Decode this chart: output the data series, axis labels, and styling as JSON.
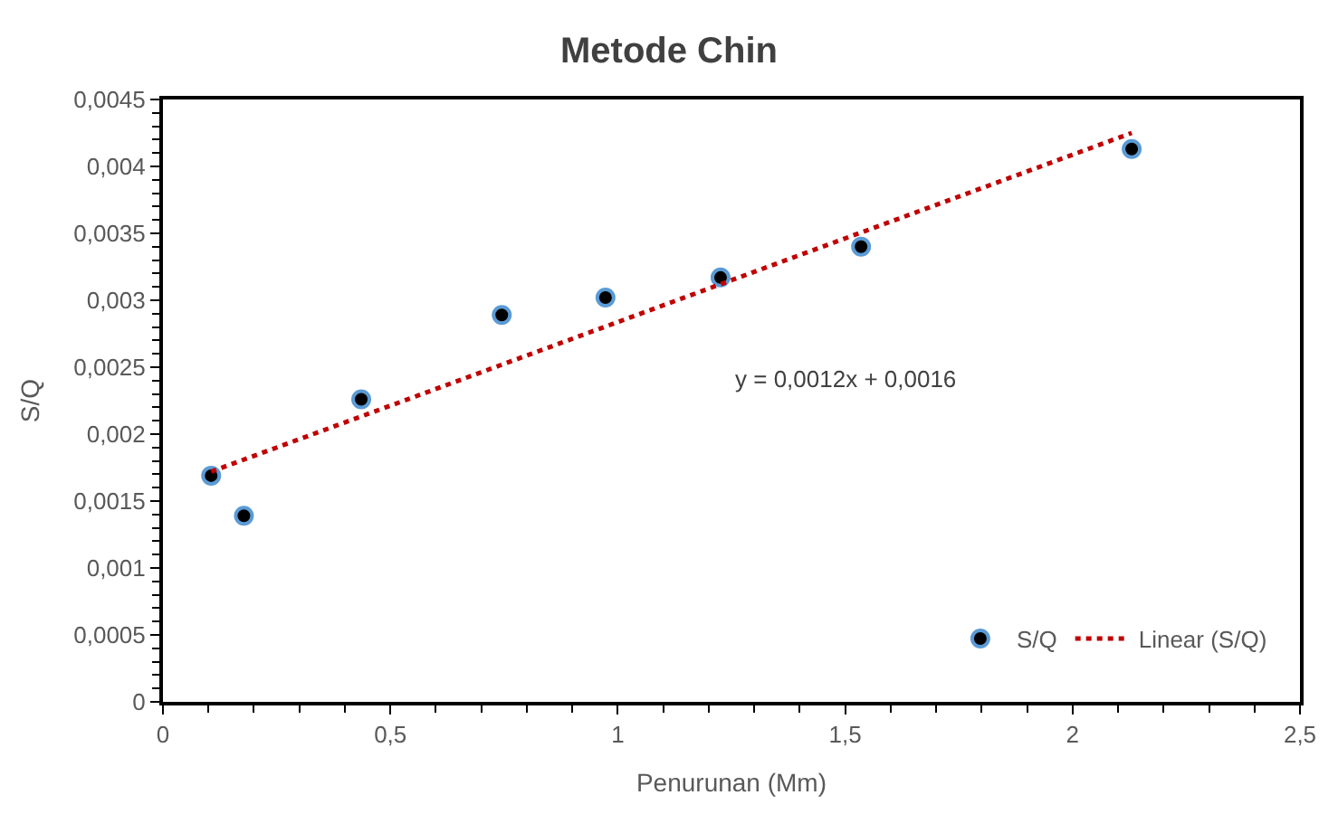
{
  "chart_data": {
    "type": "scatter",
    "title": "Metode Chin",
    "xlabel": "Penurunan (Mm)",
    "ylabel": "S/Q",
    "series": [
      {
        "name": "S/Q",
        "color": "#000000",
        "marker": "circle",
        "x": [
          0.106,
          0.178,
          0.436,
          0.745,
          0.973,
          1.226,
          1.535,
          2.13
        ],
        "values": [
          0.00169,
          0.00139,
          0.00226,
          0.00289,
          0.00302,
          0.00317,
          0.0034,
          0.00413
        ]
      },
      {
        "name": "Linear (S/Q)",
        "type": "line",
        "color": "#c00000",
        "line_style": "dotted",
        "marker": "none",
        "x": [
          0.106,
          2.13
        ],
        "values": [
          0.00172,
          0.00425
        ]
      }
    ],
    "xlim": [
      0,
      2.5
    ],
    "xticks": [
      0,
      {
        "value": 0.5,
        "label": "0,5"
      },
      1,
      {
        "value": 1.5,
        "label": "1,5"
      },
      2,
      {
        "value": 2.5,
        "label": "2,5"
      }
    ],
    "ylim": [
      0,
      0.0045
    ],
    "yticks": [
      0,
      {
        "value": 0.0005,
        "label": "0,0005"
      },
      {
        "value": 0.001,
        "label": "0,001"
      },
      {
        "value": 0.0015,
        "label": "0,0015"
      },
      {
        "value": 0.002,
        "label": "0,002"
      },
      {
        "value": 0.0025,
        "label": "0,0025"
      },
      {
        "value": 0.003,
        "label": "0,003"
      },
      {
        "value": 0.0035,
        "label": "0,0035"
      },
      {
        "value": 0.004,
        "label": "0,004"
      },
      {
        "value": 0.0045,
        "label": "0,0045"
      }
    ],
    "annotations": [
      "y = 0,0012x + 0,0016"
    ],
    "legend": "bottom right"
  }
}
